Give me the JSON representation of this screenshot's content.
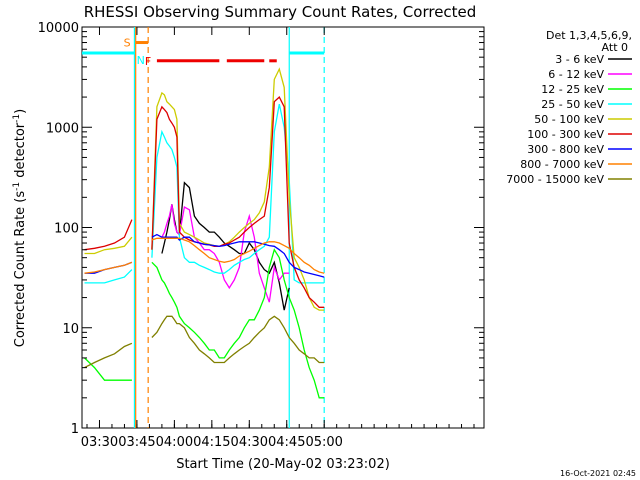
{
  "chart_data": {
    "type": "line",
    "title": "RHESSI Observing Summary Count Rates, Corrected",
    "xlabel": "Start Time (20-May-02 03:23:02)",
    "ylabel_main": "Corrected Count Rate (s",
    "ylabel_sup": "-1",
    "ylabel_tail": " detector",
    "ylabel_close": ")",
    "y_scale": "log",
    "ylim": [
      1,
      10000
    ],
    "xlim_min": [
      23,
      184
    ],
    "x_ticks": [
      {
        "label": "03:30",
        "min": 30
      },
      {
        "label": "03:45",
        "min": 45
      },
      {
        "label": "04:00",
        "min": 60
      },
      {
        "label": "04:15",
        "min": 75
      },
      {
        "label": "04:30",
        "min": 90
      },
      {
        "label": "04:45",
        "min": 105
      },
      {
        "label": "05:00",
        "min": 120
      }
    ],
    "y_ticks": [
      {
        "label": "1",
        "v": 1
      },
      {
        "label": "10",
        "v": 10
      },
      {
        "label": "100",
        "v": 100
      },
      {
        "label": "1000",
        "v": 1000
      },
      {
        "label": "10000",
        "v": 10000
      }
    ],
    "legend_header": [
      "Det 1,3,4,5,6,9,",
      "Att 0"
    ],
    "legend_placement": "right",
    "footer": "16-Oct-2021 02:45",
    "flags": {
      "s_label": "S",
      "n_label": "N",
      "f_label": "F"
    },
    "flag_level": 5500,
    "night_level": 5500,
    "night_segments": [
      [
        23,
        44
      ],
      [
        106,
        120
      ]
    ],
    "saa_segment": [
      44.5,
      49.5
    ],
    "flare_segments": [
      [
        53,
        78
      ],
      [
        81,
        96
      ],
      [
        98,
        101
      ]
    ],
    "vlines": [
      {
        "min": 44,
        "color": "#00ffff",
        "style": "solid"
      },
      {
        "min": 44.5,
        "color": "#ff8000",
        "style": "solid"
      },
      {
        "min": 49.5,
        "color": "#ff8000",
        "style": "dashed"
      },
      {
        "min": 106,
        "color": "#00ffff",
        "style": "solid"
      },
      {
        "min": 120,
        "color": "#00ffff",
        "style": "dashed"
      }
    ],
    "x": [
      24,
      28,
      32,
      36,
      40,
      43,
      47,
      49,
      51,
      53,
      55,
      56,
      57,
      58,
      59,
      60,
      61,
      62,
      64,
      66,
      68,
      70,
      72,
      74,
      76,
      78,
      80,
      82,
      84,
      86,
      88,
      90,
      92,
      94,
      96,
      98,
      100,
      102,
      104,
      106,
      108,
      110,
      112,
      114,
      116,
      118,
      120
    ],
    "gap": [
      44,
      49
    ],
    "series": [
      {
        "name": "3 - 6 keV",
        "color": "#000000",
        "values": [
          null,
          null,
          null,
          null,
          null,
          null,
          null,
          null,
          null,
          null,
          55,
          70,
          90,
          120,
          170,
          120,
          90,
          85,
          280,
          250,
          130,
          110,
          100,
          90,
          90,
          80,
          70,
          65,
          60,
          55,
          55,
          70,
          60,
          45,
          38,
          35,
          45,
          28,
          15,
          25,
          null,
          null,
          null,
          null,
          null,
          null,
          null
        ]
      },
      {
        "name": "6 - 12 keV",
        "color": "#ff00ff",
        "values": [
          null,
          null,
          null,
          null,
          null,
          null,
          null,
          null,
          null,
          null,
          80,
          90,
          110,
          130,
          170,
          110,
          90,
          85,
          160,
          150,
          80,
          70,
          60,
          60,
          55,
          45,
          30,
          25,
          30,
          40,
          90,
          130,
          80,
          35,
          25,
          18,
          40,
          30,
          35,
          35,
          null,
          null,
          null,
          null,
          null,
          null,
          null
        ]
      },
      {
        "name": "12 - 25 keV",
        "color": "#00ff00",
        "values": [
          5,
          4,
          3,
          3,
          3,
          3,
          null,
          null,
          45,
          40,
          30,
          28,
          25,
          22,
          20,
          18,
          16,
          13,
          11,
          10,
          9,
          8,
          7,
          6,
          6,
          5,
          5,
          6,
          7,
          8,
          10,
          12,
          12,
          15,
          20,
          40,
          60,
          50,
          30,
          20,
          15,
          10,
          6,
          4,
          3,
          2,
          2
        ]
      },
      {
        "name": "25 - 50 keV",
        "color": "#00ffff",
        "values": [
          28,
          28,
          28,
          30,
          32,
          38,
          null,
          null,
          50,
          500,
          900,
          800,
          700,
          650,
          600,
          500,
          400,
          80,
          50,
          45,
          45,
          42,
          40,
          38,
          36,
          35,
          35,
          38,
          42,
          45,
          48,
          50,
          55,
          60,
          65,
          80,
          900,
          1700,
          1000,
          300,
          30,
          28,
          28,
          28,
          28,
          28,
          28
        ]
      },
      {
        "name": "50 - 100 keV",
        "color": "#cccc00",
        "values": [
          55,
          55,
          60,
          62,
          65,
          80,
          null,
          null,
          60,
          1600,
          2200,
          2100,
          1800,
          1700,
          1600,
          1500,
          1200,
          110,
          90,
          85,
          80,
          75,
          70,
          68,
          66,
          65,
          68,
          72,
          80,
          90,
          100,
          110,
          120,
          140,
          180,
          400,
          3000,
          3800,
          2500,
          200,
          50,
          40,
          30,
          20,
          16,
          15,
          15
        ]
      },
      {
        "name": "100 - 300 keV",
        "color": "#dd0000",
        "values": [
          60,
          62,
          65,
          70,
          80,
          120,
          null,
          null,
          60,
          1200,
          1600,
          1500,
          1400,
          1200,
          1100,
          1000,
          800,
          90,
          80,
          75,
          72,
          70,
          68,
          67,
          65,
          65,
          68,
          70,
          75,
          80,
          90,
          100,
          110,
          120,
          130,
          250,
          1800,
          2000,
          1600,
          70,
          40,
          30,
          25,
          20,
          18,
          16,
          16
        ]
      },
      {
        "name": "300 - 800 keV",
        "color": "#0000ff",
        "values": [
          35,
          35,
          38,
          40,
          42,
          45,
          null,
          null,
          80,
          85,
          80,
          80,
          80,
          80,
          80,
          80,
          80,
          75,
          80,
          80,
          72,
          70,
          68,
          67,
          66,
          65,
          66,
          68,
          70,
          72,
          72,
          72,
          72,
          70,
          68,
          66,
          65,
          60,
          55,
          45,
          40,
          38,
          36,
          35,
          34,
          33,
          32
        ]
      },
      {
        "name": "800 - 7000 keV",
        "color": "#ff8000",
        "values": [
          35,
          36,
          38,
          40,
          42,
          45,
          null,
          null,
          75,
          78,
          78,
          78,
          78,
          78,
          78,
          78,
          78,
          78,
          75,
          72,
          66,
          60,
          55,
          50,
          48,
          46,
          45,
          46,
          48,
          52,
          55,
          58,
          62,
          66,
          70,
          72,
          72,
          70,
          66,
          62,
          55,
          50,
          45,
          42,
          38,
          36,
          35
        ]
      },
      {
        "name": "7000 - 15000 keV",
        "color": "#808000",
        "values": [
          4,
          4.5,
          5,
          5.5,
          6.5,
          7,
          null,
          null,
          8,
          9,
          11,
          12,
          13,
          13,
          13,
          12,
          11,
          11,
          10,
          8,
          7,
          6,
          5.5,
          5,
          4.5,
          4.5,
          4.5,
          5,
          5.5,
          6,
          6.5,
          7,
          8,
          9,
          10,
          12,
          13,
          12,
          10,
          8,
          7,
          6,
          5.5,
          5,
          5,
          4.5,
          4.5
        ]
      }
    ]
  }
}
